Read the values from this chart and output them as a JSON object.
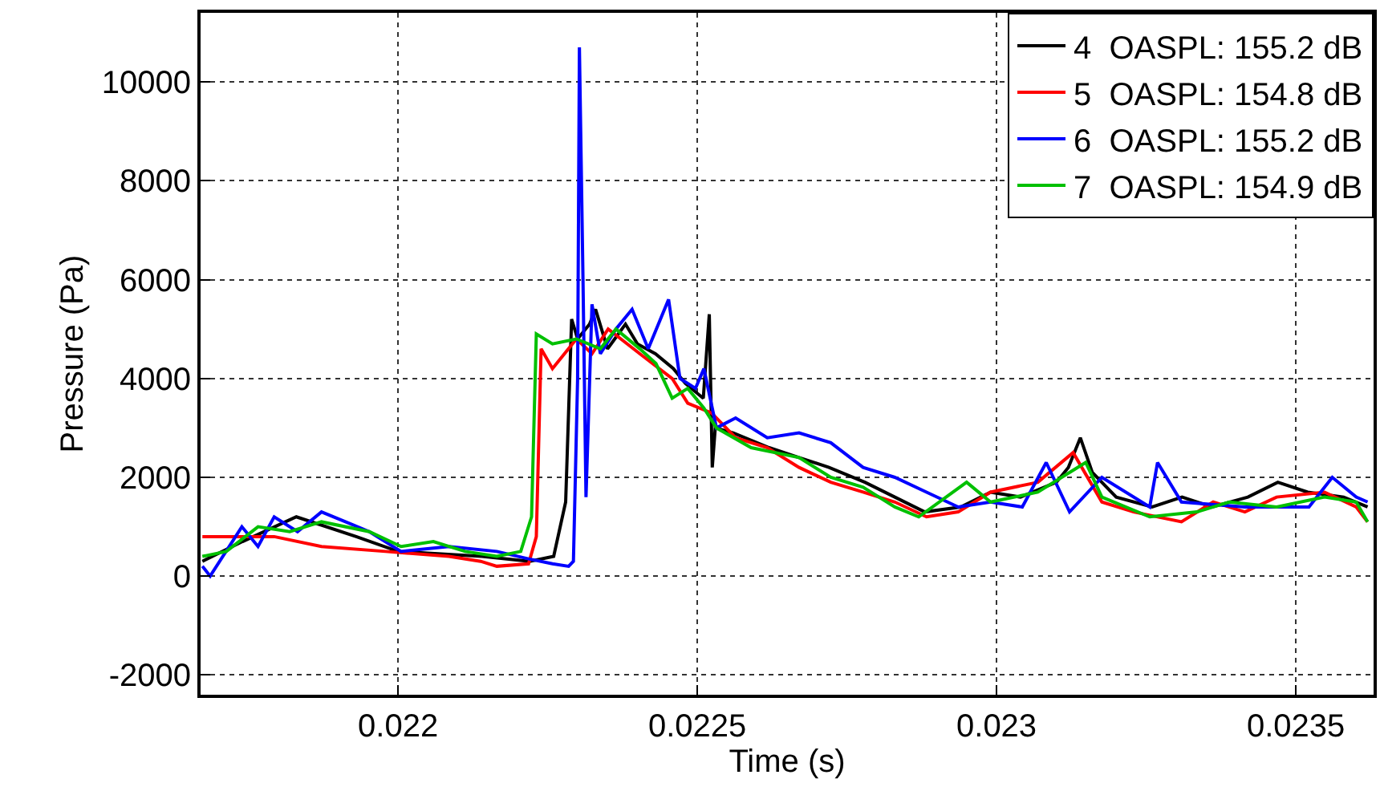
{
  "chart_data": {
    "type": "line",
    "xlabel": "Time (s)",
    "ylabel": "Pressure (Pa)",
    "xlim": [
      0.02167,
      0.02363
    ],
    "xticks": [
      0.022,
      0.0225,
      0.023,
      0.0235
    ],
    "ylim": [
      -2400,
      11400
    ],
    "yticks": [
      -2000,
      0,
      2000,
      4000,
      6000,
      8000,
      10000
    ],
    "grid": true,
    "legend": "top right",
    "marker": "none",
    "line_style": "solid",
    "series": [
      {
        "name": "4  OASPL: 155.2 dB",
        "color": "#000000",
        "x": [
          0.021673,
          0.02174,
          0.02183,
          0.02193,
          0.022,
          0.02214,
          0.02222,
          0.02226,
          0.02228,
          0.02229,
          0.0223,
          0.02232,
          0.02233,
          0.02235,
          0.02238,
          0.0224,
          0.02243,
          0.02246,
          0.02248,
          0.02251,
          0.02252,
          0.022525,
          0.02253,
          0.02256,
          0.02262,
          0.02267,
          0.02272,
          0.02278,
          0.02283,
          0.02288,
          0.02294,
          0.02299,
          0.02304,
          0.0231,
          0.02312,
          0.02314,
          0.02316,
          0.0232,
          0.02326,
          0.02331,
          0.02336,
          0.02342,
          0.02347,
          0.02352,
          0.02358,
          0.02362
        ],
        "values": [
          300,
          700,
          1200,
          800,
          500,
          400,
          300,
          400,
          1500,
          5200,
          4800,
          5100,
          5400,
          4600,
          5100,
          4700,
          4500,
          4200,
          3900,
          3600,
          5300,
          2200,
          3000,
          2900,
          2600,
          2400,
          2200,
          1900,
          1600,
          1300,
          1400,
          1700,
          1600,
          1900,
          2200,
          2800,
          2100,
          1600,
          1400,
          1600,
          1400,
          1600,
          1900,
          1700,
          1600,
          1400
        ]
      },
      {
        "name": "5  OASPL: 154.8 dB",
        "color": "#ff0000",
        "x": [
          0.021673,
          0.021793,
          0.021872,
          0.021979,
          0.022085,
          0.022138,
          0.022165,
          0.022218,
          0.022231,
          0.022239,
          0.022258,
          0.022298,
          0.022324,
          0.022351,
          0.022404,
          0.022458,
          0.022484,
          0.022524,
          0.022564,
          0.022617,
          0.02267,
          0.022723,
          0.022777,
          0.02283,
          0.022883,
          0.022936,
          0.02299,
          0.023069,
          0.023128,
          0.023176,
          0.023229,
          0.023309,
          0.023362,
          0.023415,
          0.023468,
          0.023548,
          0.023601,
          0.02362
        ],
        "values": [
          800,
          800,
          600,
          500,
          400,
          300,
          200,
          250,
          800,
          4600,
          4200,
          4800,
          4500,
          5000,
          4500,
          4000,
          3500,
          3300,
          2800,
          2600,
          2200,
          1900,
          1700,
          1500,
          1200,
          1300,
          1700,
          1900,
          2500,
          1500,
          1300,
          1100,
          1500,
          1300,
          1600,
          1700,
          1400,
          1100
        ]
      },
      {
        "name": "6  OASPL: 155.2 dB",
        "color": "#0000ff",
        "x": [
          0.021673,
          0.021686,
          0.021739,
          0.021766,
          0.021793,
          0.021832,
          0.021872,
          0.021912,
          0.021952,
          0.022005,
          0.022085,
          0.022165,
          0.022218,
          0.022258,
          0.022285,
          0.022293,
          0.0223,
          0.022303,
          0.022309,
          0.022314,
          0.022324,
          0.022338,
          0.022364,
          0.022391,
          0.022418,
          0.022452,
          0.022471,
          0.022497,
          0.022511,
          0.022532,
          0.022564,
          0.022617,
          0.02267,
          0.022723,
          0.022777,
          0.02283,
          0.022883,
          0.022936,
          0.02299,
          0.023043,
          0.023083,
          0.023122,
          0.023176,
          0.023256,
          0.023269,
          0.023309,
          0.023415,
          0.023522,
          0.023561,
          0.023601,
          0.02362
        ],
        "values": [
          200,
          0,
          1000,
          600,
          1200,
          900,
          1300,
          1100,
          900,
          500,
          600,
          500,
          350,
          250,
          200,
          300,
          4000,
          10700,
          6000,
          1600,
          5500,
          4500,
          5000,
          5400,
          4600,
          5600,
          4000,
          3800,
          4200,
          3000,
          3200,
          2800,
          2900,
          2700,
          2200,
          2000,
          1700,
          1400,
          1500,
          1400,
          2300,
          1300,
          2000,
          1400,
          2300,
          1500,
          1400,
          1400,
          2000,
          1600,
          1500
        ]
      },
      {
        "name": "7  OASPL: 154.9 dB",
        "color": "#00c000",
        "x": [
          0.021673,
          0.021713,
          0.021766,
          0.021819,
          0.021872,
          0.021952,
          0.022005,
          0.022059,
          0.022112,
          0.022165,
          0.022205,
          0.022223,
          0.022231,
          0.022258,
          0.022298,
          0.022338,
          0.022364,
          0.022404,
          0.022431,
          0.022458,
          0.022484,
          0.022511,
          0.022532,
          0.02259,
          0.02267,
          0.022723,
          0.022777,
          0.02283,
          0.02287,
          0.02295,
          0.02299,
          0.023069,
          0.023149,
          0.023176,
          0.023256,
          0.023335,
          0.023389,
          0.023468,
          0.023548,
          0.023601,
          0.02362
        ],
        "values": [
          400,
          500,
          1000,
          900,
          1100,
          900,
          600,
          700,
          500,
          400,
          500,
          1200,
          4900,
          4700,
          4800,
          4600,
          5000,
          4600,
          4300,
          3600,
          3800,
          3400,
          3000,
          2600,
          2400,
          2000,
          1800,
          1400,
          1200,
          1900,
          1500,
          1700,
          2300,
          1600,
          1200,
          1300,
          1500,
          1400,
          1600,
          1500,
          1100
        ]
      }
    ]
  }
}
